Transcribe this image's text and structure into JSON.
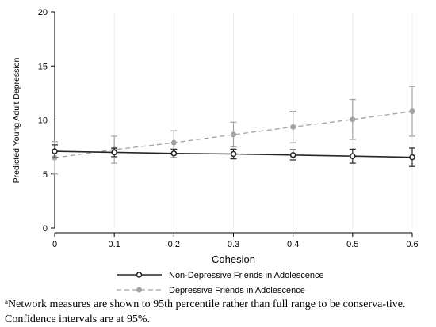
{
  "chart_data": {
    "type": "line",
    "xlabel": "Cohesion",
    "ylabel": "Predicted Young Adult Depression",
    "xlim": [
      0,
      0.6
    ],
    "ylim": [
      0,
      20
    ],
    "x_ticks": [
      "0",
      "0.1",
      "0.2",
      "0.3",
      "0.4",
      "0.5",
      "0.6"
    ],
    "y_ticks": [
      "0",
      "5",
      "10",
      "15",
      "20"
    ],
    "grid": "vertical",
    "legend_position": "bottom",
    "series": [
      {
        "name": "Non-Depressive Friends in Adolescence",
        "style": "solid",
        "color": "#262626",
        "x": [
          0,
          0.1,
          0.2,
          0.3,
          0.4,
          0.5,
          0.6
        ],
        "y": [
          7.1,
          7.0,
          6.9,
          6.85,
          6.75,
          6.65,
          6.55
        ],
        "ci_low": [
          6.5,
          6.6,
          6.5,
          6.4,
          6.3,
          6.0,
          5.7
        ],
        "ci_high": [
          7.7,
          7.4,
          7.3,
          7.3,
          7.25,
          7.3,
          7.4
        ]
      },
      {
        "name": "Depressive Friends in Adolescence",
        "style": "dashed",
        "color": "#a3a3a3",
        "x": [
          0,
          0.1,
          0.2,
          0.3,
          0.4,
          0.5,
          0.6
        ],
        "y": [
          6.5,
          7.25,
          7.9,
          8.65,
          9.35,
          10.05,
          10.8
        ],
        "ci_low": [
          5.0,
          6.0,
          6.8,
          7.5,
          7.9,
          8.2,
          8.5
        ],
        "ci_high": [
          8.0,
          8.5,
          9.0,
          9.8,
          10.8,
          11.9,
          13.1
        ]
      }
    ]
  },
  "footnote": {
    "marker": "a",
    "text": "Network measures are shown to 95th percentile rather than full range to be conserva-tive. Confidence intervals are at 95%."
  }
}
